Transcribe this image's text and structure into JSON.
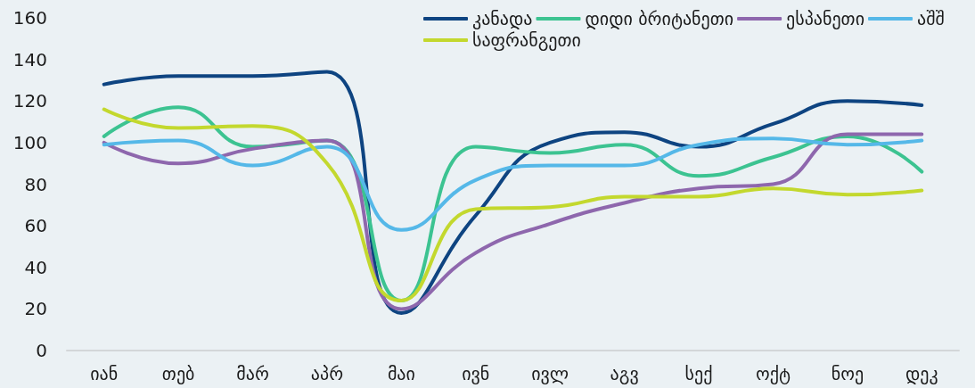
{
  "chart_data": {
    "type": "line",
    "categories": [
      "იან",
      "თებ",
      "მარ",
      "აპრ",
      "მაი",
      "ივნ",
      "ივლ",
      "აგვ",
      "სექ",
      "ოქტ",
      "ნოე",
      "დეკ"
    ],
    "series": [
      {
        "name": "კანადა",
        "color": "#0e4481",
        "values": [
          128,
          132,
          132,
          134,
          18,
          65,
          100,
          105,
          98,
          109,
          120,
          118
        ]
      },
      {
        "name": "დიდი ბრიტანეთი",
        "color": "#3cc391",
        "values": [
          103,
          117,
          98,
          101,
          24,
          98,
          95,
          99,
          84,
          93,
          103,
          86
        ]
      },
      {
        "name": "ესპანეთი",
        "color": "#8e67ad",
        "values": [
          100,
          90,
          97,
          101,
          20,
          47,
          61,
          71,
          78,
          80,
          104,
          104
        ]
      },
      {
        "name": "აშშ",
        "color": "#55b8e8",
        "values": [
          99,
          101,
          89,
          98,
          58,
          82,
          89,
          89,
          99,
          102,
          99,
          101
        ]
      },
      {
        "name": "საფრანგეთი",
        "color": "#c3d82e",
        "values": [
          116,
          107,
          108,
          90,
          24,
          68,
          69,
          74,
          74,
          78,
          75,
          77
        ]
      }
    ],
    "ylim": [
      0,
      160
    ],
    "yticks": [
      0,
      20,
      40,
      60,
      80,
      100,
      120,
      140,
      160
    ],
    "grid": false,
    "legend": "top right",
    "marker": "none",
    "line_style": "solid"
  }
}
